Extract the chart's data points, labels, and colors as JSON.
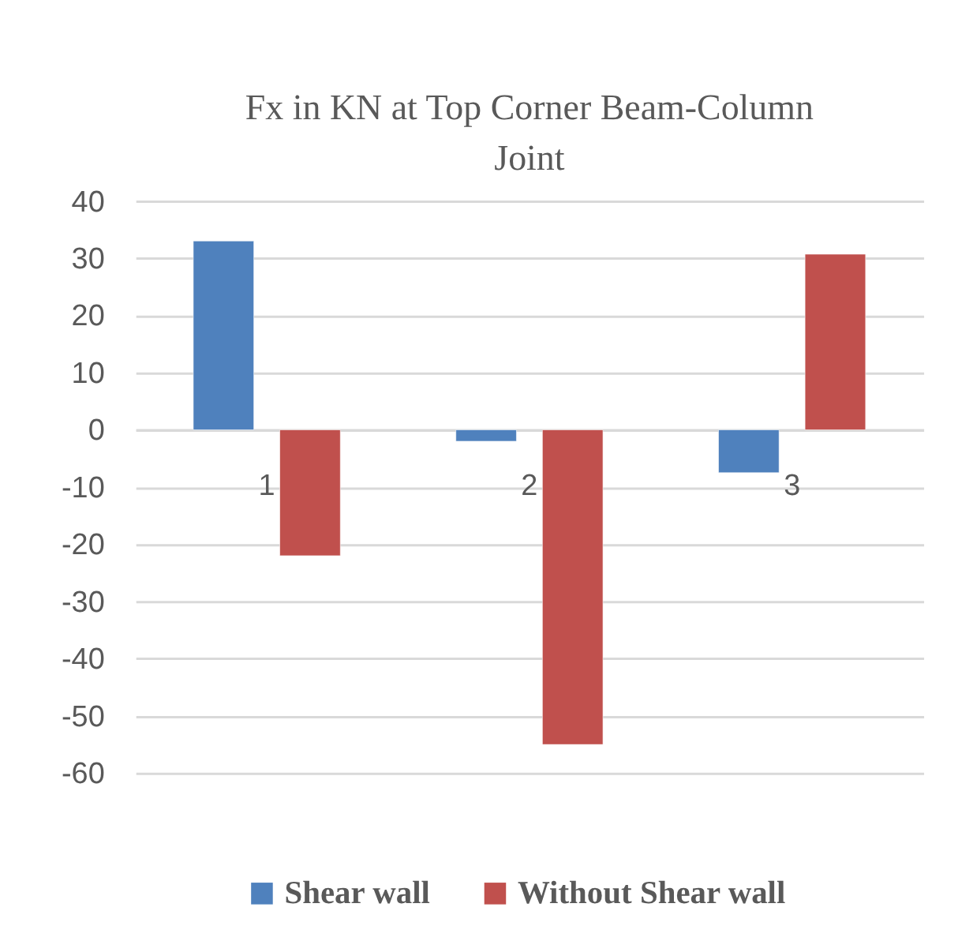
{
  "chart_data": {
    "type": "bar",
    "title": "Fx in KN at Top Corner Beam-Column Joint",
    "categories": [
      "1",
      "2",
      "3"
    ],
    "series": [
      {
        "name": "Shear wall",
        "color": "#4f81bd",
        "values": [
          33,
          -2,
          -7.5
        ]
      },
      {
        "name": "Without Shear wall",
        "color": "#c0504d",
        "values": [
          -22,
          -55,
          30.7
        ]
      }
    ],
    "ylim": [
      -60,
      40
    ],
    "yticks": [
      -60,
      -50,
      -40,
      -30,
      -20,
      -10,
      0,
      10,
      20,
      30,
      40
    ],
    "grid": "y",
    "legend": "bottom"
  }
}
